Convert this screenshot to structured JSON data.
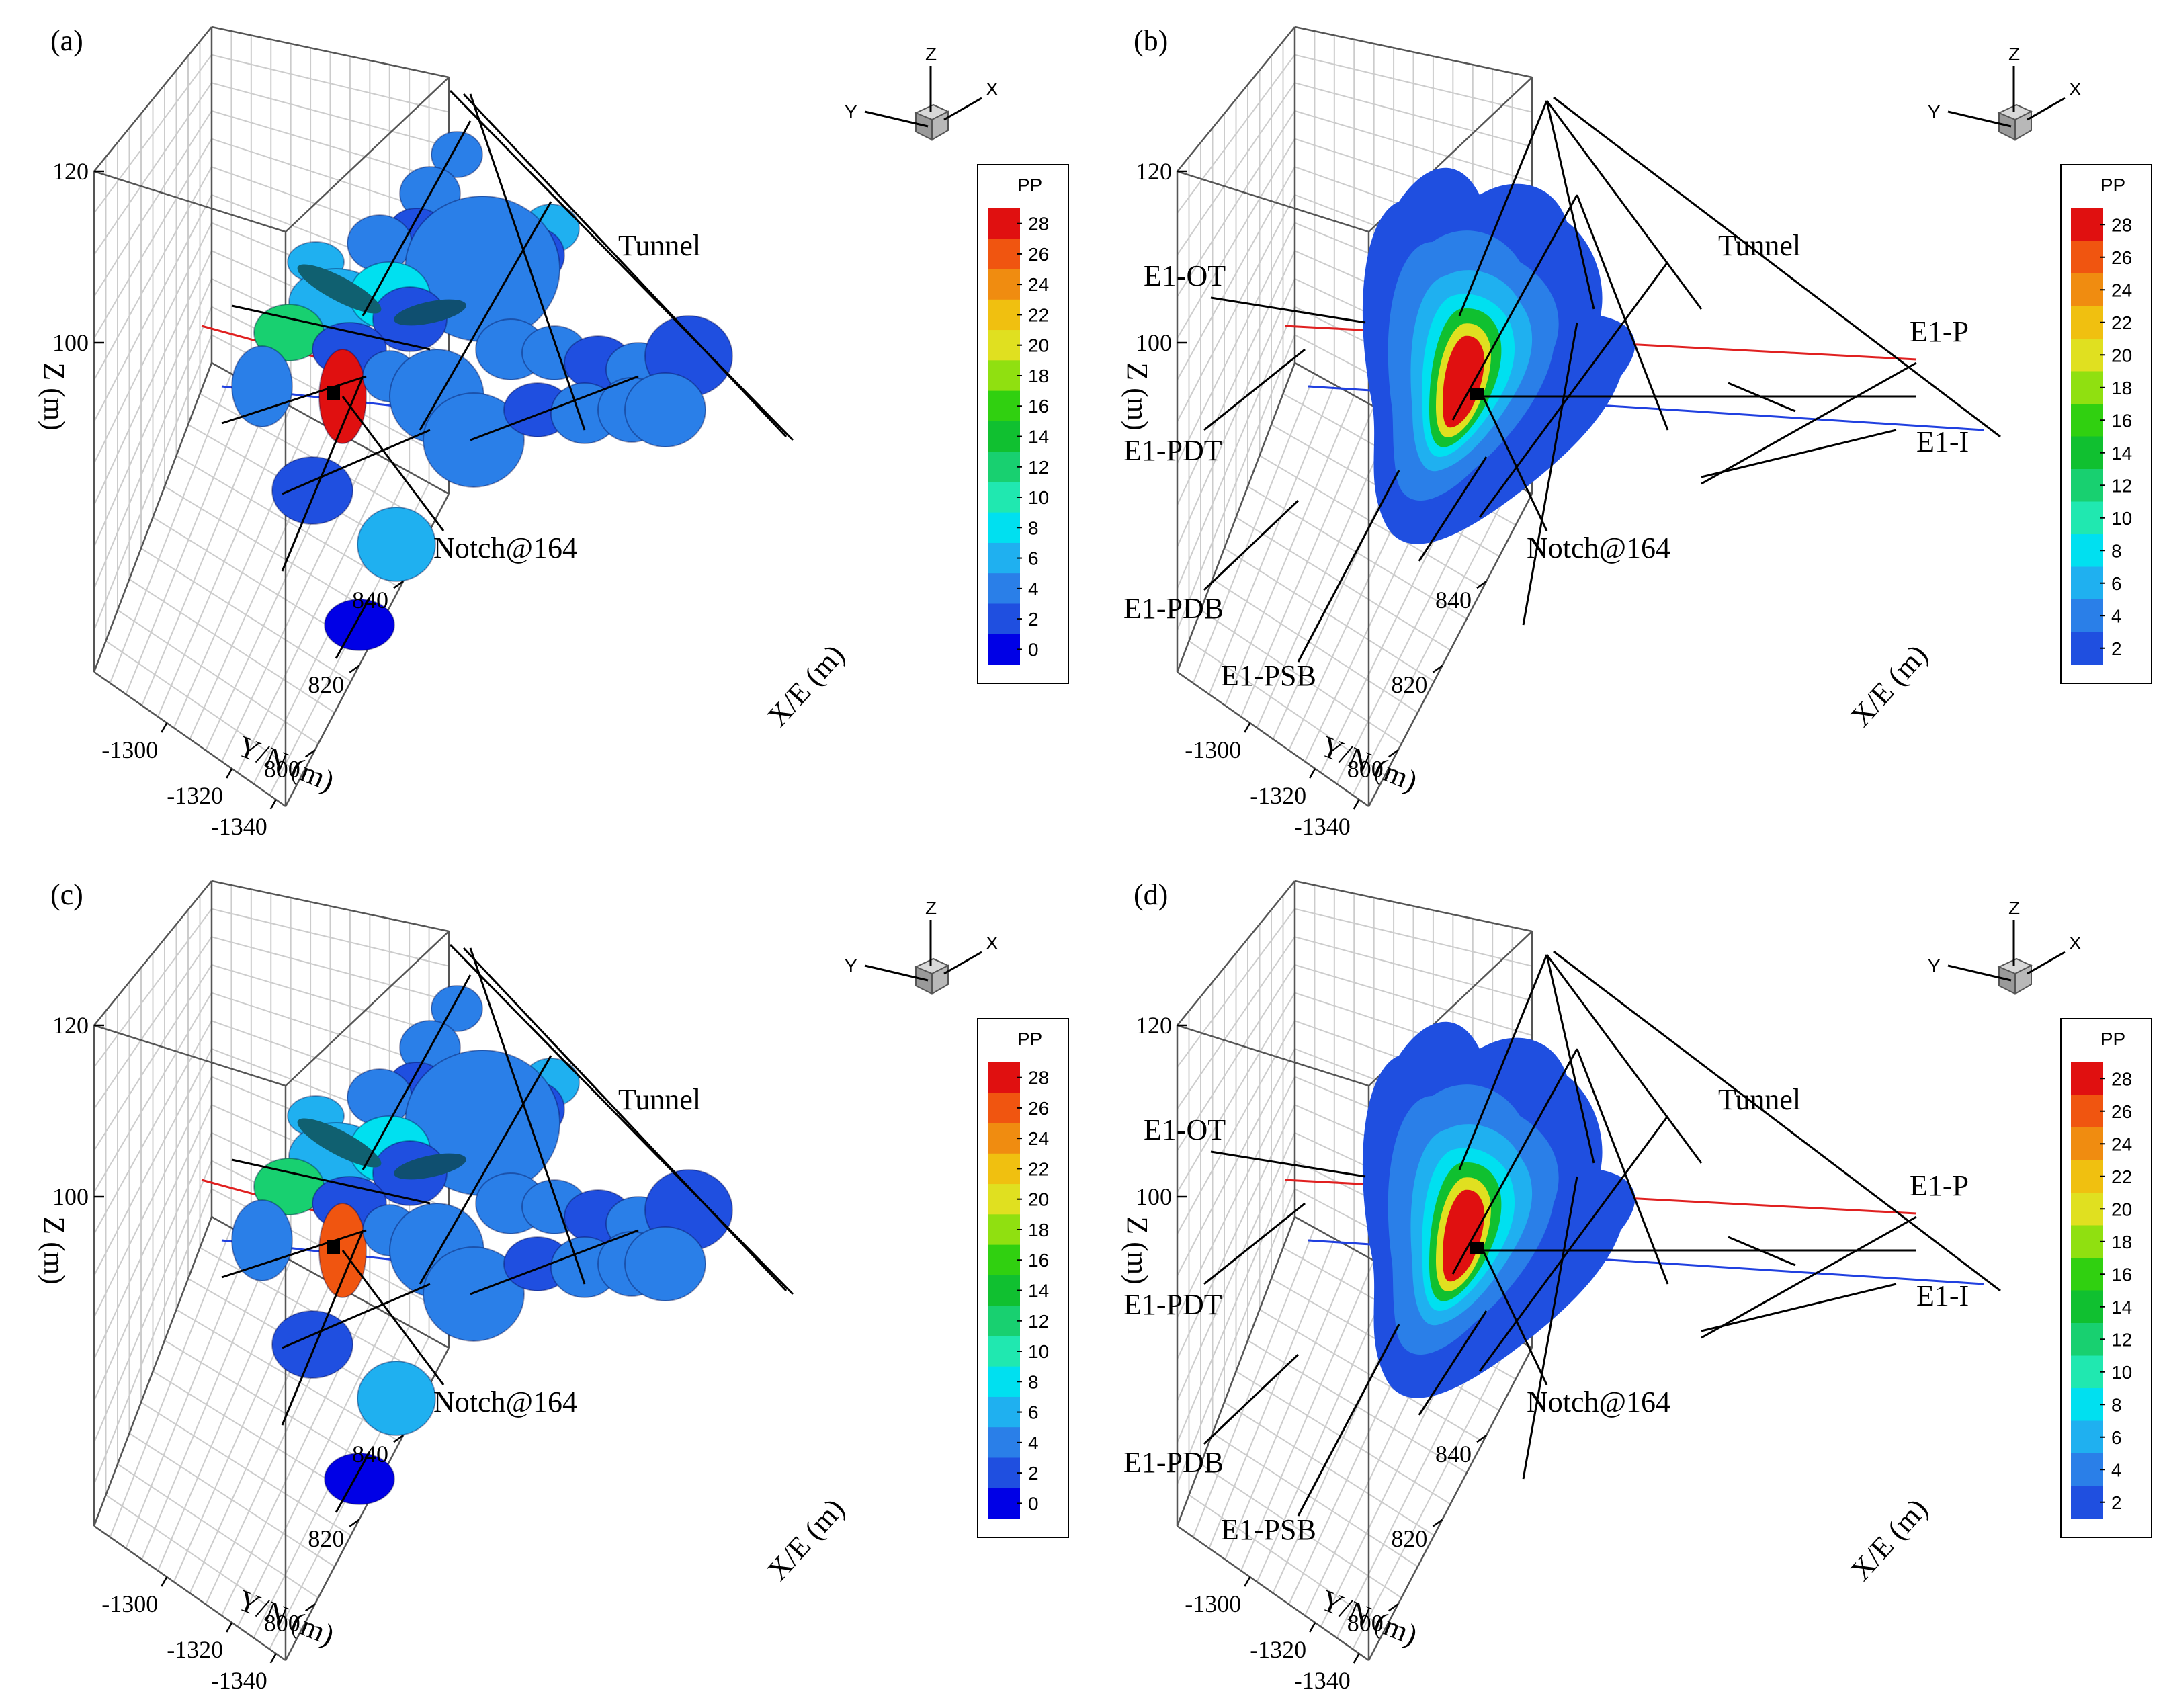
{
  "figure": {
    "panels": [
      {
        "id": "a",
        "label": "(a)",
        "type": "discs",
        "legend_title": "PP",
        "legend_ticks": [
          "28",
          "26",
          "24",
          "22",
          "20",
          "18",
          "16",
          "14",
          "12",
          "10",
          "8",
          "6",
          "4",
          "2",
          "0"
        ],
        "tunnel_label": "Tunnel",
        "notch_label": "Notch@164",
        "borehole_labels": [],
        "zlabel": "Z (m)",
        "ylabel": "Y/N (m)",
        "xlabel": "X/E (m)",
        "z_ticks": [
          "120",
          "100"
        ],
        "y_ticks": [
          "-1300",
          "-1320",
          "-1340"
        ],
        "x_ticks": [
          "840",
          "820",
          "800"
        ],
        "triad": {
          "z": "Z",
          "y": "Y",
          "x": "X"
        }
      },
      {
        "id": "b",
        "label": "(b)",
        "type": "contour",
        "legend_title": "PP",
        "legend_ticks": [
          "28",
          "26",
          "24",
          "22",
          "20",
          "18",
          "16",
          "14",
          "12",
          "10",
          "8",
          "6",
          "4",
          "2"
        ],
        "tunnel_label": "Tunnel",
        "notch_label": "Notch@164",
        "borehole_labels": [
          "E1-OT",
          "E1-P",
          "E1-PDT",
          "E1-I",
          "E1-PDB",
          "E1-PSB"
        ],
        "zlabel": "Z (m)",
        "ylabel": "Y/N (m)",
        "xlabel": "X/E (m)",
        "z_ticks": [
          "120",
          "100"
        ],
        "y_ticks": [
          "-1300",
          "-1320",
          "-1340"
        ],
        "x_ticks": [
          "840",
          "820",
          "800"
        ],
        "triad": {
          "z": "Z",
          "y": "Y",
          "x": "X"
        }
      },
      {
        "id": "c",
        "label": "(c)",
        "type": "discs",
        "legend_title": "PP",
        "legend_ticks": [
          "28",
          "26",
          "24",
          "22",
          "20",
          "18",
          "16",
          "14",
          "12",
          "10",
          "8",
          "6",
          "4",
          "2",
          "0"
        ],
        "tunnel_label": "Tunnel",
        "notch_label": "Notch@164",
        "borehole_labels": [],
        "zlabel": "Z (m)",
        "ylabel": "Y/N (m)",
        "xlabel": "X/E (m)",
        "z_ticks": [
          "120",
          "100"
        ],
        "y_ticks": [
          "-1300",
          "-1320",
          "-1340"
        ],
        "x_ticks": [
          "840",
          "820",
          "800"
        ],
        "triad": {
          "z": "Z",
          "y": "Y",
          "x": "X"
        }
      },
      {
        "id": "d",
        "label": "(d)",
        "type": "contour",
        "legend_title": "PP",
        "legend_ticks": [
          "28",
          "26",
          "24",
          "22",
          "20",
          "18",
          "16",
          "14",
          "12",
          "10",
          "8",
          "6",
          "4",
          "2"
        ],
        "tunnel_label": "Tunnel",
        "notch_label": "Notch@164",
        "borehole_labels": [
          "E1-OT",
          "E1-P",
          "E1-PDT",
          "E1-I",
          "E1-PDB",
          "E1-PSB"
        ],
        "zlabel": "Z (m)",
        "ylabel": "Y/N (m)",
        "xlabel": "X/E (m)",
        "z_ticks": [
          "120",
          "100"
        ],
        "y_ticks": [
          "-1300",
          "-1320",
          "-1340"
        ],
        "x_ticks": [
          "840",
          "820",
          "800"
        ],
        "triad": {
          "z": "Z",
          "y": "Y",
          "x": "X"
        }
      }
    ]
  },
  "colors": {
    "pp_scale": [
      "#0000e6",
      "#1f4fe0",
      "#2a7fe8",
      "#1fb0f0",
      "#00e0f0",
      "#20e8b0",
      "#18d070",
      "#10c030",
      "#30d010",
      "#90e010",
      "#e0e020",
      "#f0c010",
      "#f08c10",
      "#f05510",
      "#e01010"
    ],
    "injection_line": "#e02020",
    "monitor_line": "#2040e0",
    "axes": "#000000",
    "grid": "#cccccc"
  },
  "chart_data": [
    {
      "panel": "a",
      "type": "scatter",
      "title": "(a)",
      "description_key": "pore pressure on fracture discs",
      "color_variable": "PP",
      "color_range": [
        0,
        28
      ],
      "color_step": 2,
      "zlabel": "Z (m)",
      "ylabel": "Y/N (m)",
      "xlabel": "X/E (m)",
      "z_ticks": [
        120,
        100
      ],
      "y_ticks": [
        -1300,
        -1320,
        -1340
      ],
      "x_ticks": [
        840,
        820,
        800
      ],
      "annotations": [
        "Tunnel",
        "Notch@164"
      ]
    },
    {
      "panel": "b",
      "type": "heatmap",
      "title": "(b)",
      "color_variable": "PP",
      "color_range": [
        2,
        28
      ],
      "color_step": 2,
      "zlabel": "Z (m)",
      "ylabel": "Y/N (m)",
      "xlabel": "X/E (m)",
      "z_ticks": [
        120,
        100
      ],
      "y_ticks": [
        -1300,
        -1320,
        -1340
      ],
      "x_ticks": [
        840,
        820,
        800
      ],
      "annotations": [
        "Tunnel",
        "Notch@164",
        "E1-OT",
        "E1-P",
        "E1-PDT",
        "E1-I",
        "E1-PDB",
        "E1-PSB"
      ]
    },
    {
      "panel": "c",
      "type": "scatter",
      "title": "(c)",
      "color_variable": "PP",
      "color_range": [
        0,
        28
      ],
      "color_step": 2,
      "zlabel": "Z (m)",
      "ylabel": "Y/N (m)",
      "xlabel": "X/E (m)",
      "z_ticks": [
        120,
        100
      ],
      "y_ticks": [
        -1300,
        -1320,
        -1340
      ],
      "x_ticks": [
        840,
        820,
        800
      ],
      "annotations": [
        "Tunnel",
        "Notch@164"
      ]
    },
    {
      "panel": "d",
      "type": "heatmap",
      "title": "(d)",
      "color_variable": "PP",
      "color_range": [
        2,
        28
      ],
      "color_step": 2,
      "zlabel": "Z (m)",
      "ylabel": "Y/N (m)",
      "xlabel": "X/E (m)",
      "z_ticks": [
        120,
        100
      ],
      "y_ticks": [
        -1300,
        -1320,
        -1340
      ],
      "x_ticks": [
        840,
        820,
        800
      ],
      "annotations": [
        "Tunnel",
        "Notch@164",
        "E1-OT",
        "E1-P",
        "E1-PDT",
        "E1-I",
        "E1-PDB",
        "E1-PSB"
      ]
    }
  ]
}
